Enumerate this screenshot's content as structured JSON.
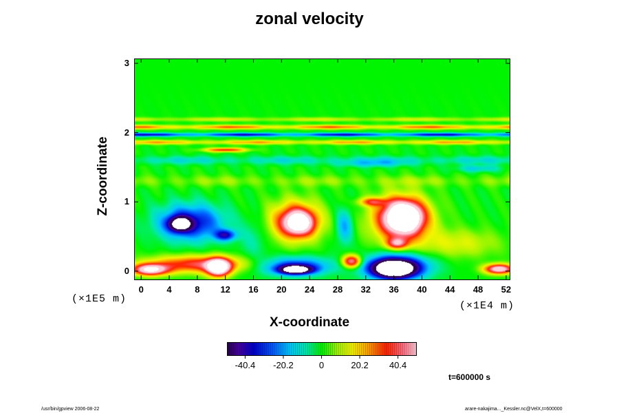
{
  "chart_data": {
    "type": "heatmap",
    "title": "zonal velocity",
    "xlabel": "X-coordinate",
    "ylabel": "Z-coordinate",
    "x_ticks": [
      "0",
      "4",
      "8",
      "12",
      "16",
      "20",
      "24",
      "28",
      "32",
      "36",
      "40",
      "44",
      "48",
      "52"
    ],
    "y_ticks": [
      "0",
      "1",
      "2",
      "3"
    ],
    "xlim": [
      -1,
      52.5
    ],
    "ylim": [
      -0.12,
      3.07
    ],
    "x_unit": "(×1E4 m)",
    "y_unit": "(×1E5 m)",
    "colorbar": {
      "ticks": [
        "-40.4",
        "-20.2",
        "0",
        "20.2",
        "40.4"
      ],
      "range": [
        -50,
        50
      ]
    },
    "time_label": "t=600000 s",
    "background_value": 0,
    "bands": [
      {
        "z": 2.19,
        "w": 0.03,
        "v": 10
      },
      {
        "z": 2.08,
        "w": 0.03,
        "v": 22
      },
      {
        "z": 1.97,
        "w": 0.025,
        "v": -28
      },
      {
        "z": 1.86,
        "w": 0.03,
        "v": 18
      },
      {
        "z": 1.6,
        "w": 0.06,
        "v": -9
      },
      {
        "z": 1.3,
        "w": 0.08,
        "v": 6
      }
    ],
    "blobs": [
      {
        "x": 7,
        "z": 0.7,
        "rx": 4.5,
        "rz": 0.25,
        "v": -38
      },
      {
        "x": 5.5,
        "z": 0.68,
        "rx": 1.5,
        "rz": 0.1,
        "v": -58
      },
      {
        "x": 12,
        "z": 0.52,
        "rx": 1.5,
        "rz": 0.08,
        "v": -35
      },
      {
        "x": 22,
        "z": 0.72,
        "rx": 3.5,
        "rz": 0.28,
        "v": 40
      },
      {
        "x": 22.5,
        "z": 0.7,
        "rx": 2,
        "rz": 0.16,
        "v": 52
      },
      {
        "x": 29,
        "z": 0.65,
        "rx": 1.2,
        "rz": 0.25,
        "v": -20
      },
      {
        "x": 37,
        "z": 0.75,
        "rx": 4,
        "rz": 0.32,
        "v": 48
      },
      {
        "x": 37.5,
        "z": 0.78,
        "rx": 2.3,
        "rz": 0.2,
        "v": 75
      },
      {
        "x": 36.5,
        "z": 0.4,
        "rx": 1.5,
        "rz": 0.08,
        "v": 35
      },
      {
        "x": 33,
        "z": 1.0,
        "rx": 2,
        "rz": 0.06,
        "v": 28
      },
      {
        "x": 8,
        "z": 0.1,
        "rx": 7,
        "rz": 0.12,
        "v": 38
      },
      {
        "x": 11,
        "z": 0.05,
        "rx": 1.6,
        "rz": 0.12,
        "v": 75
      },
      {
        "x": 1.3,
        "z": 0.02,
        "rx": 2.5,
        "rz": 0.08,
        "v": 60
      },
      {
        "x": 22,
        "z": 0.07,
        "rx": 5,
        "rz": 0.13,
        "v": -32
      },
      {
        "x": 22,
        "z": 0.02,
        "rx": 2.2,
        "rz": 0.06,
        "v": -70
      },
      {
        "x": 30,
        "z": 0.14,
        "rx": 1.3,
        "rz": 0.09,
        "v": 50
      },
      {
        "x": 36.5,
        "z": 0.07,
        "rx": 4.5,
        "rz": 0.18,
        "v": -42
      },
      {
        "x": 36,
        "z": 0.03,
        "rx": 2.8,
        "rz": 0.12,
        "v": -80
      },
      {
        "x": 51,
        "z": 0.03,
        "rx": 2,
        "rz": 0.07,
        "v": 60
      },
      {
        "x": 45,
        "z": 0.4,
        "rx": 6,
        "rz": 0.2,
        "v": 14
      },
      {
        "x": 16,
        "z": 0.45,
        "rx": 2,
        "rz": 0.3,
        "v": -8
      },
      {
        "x": 48,
        "z": 1.48,
        "rx": 3,
        "rz": 0.05,
        "v": -14
      },
      {
        "x": 12,
        "z": 1.75,
        "rx": 3,
        "rz": 0.03,
        "v": 35
      },
      {
        "x": 33,
        "z": 1.55,
        "rx": 5,
        "rz": 0.05,
        "v": -12
      }
    ]
  },
  "footer": {
    "left": "/usr/bin/gpview 2006-08-22",
    "right": "arare-nakajima..._Kessler.nc@VelX,t=600000"
  }
}
